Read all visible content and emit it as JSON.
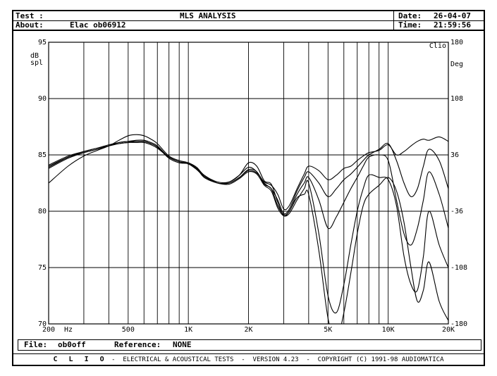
{
  "header": {
    "test_label": "Test :",
    "title": "MLS ANALYSIS",
    "date_label": "Date:",
    "date_value": "26-04-07",
    "about_label": "About:",
    "about_value": "Elac ob06912",
    "time_label": "Time:",
    "time_value": "21:59:56"
  },
  "footer": {
    "file_label": "File:",
    "file_value": "ob0off",
    "reference_label": "Reference:",
    "reference_value": "NONE"
  },
  "credits": {
    "brand": "C L I O",
    "text": "-  ELECTRICAL & ACOUSTICAL TESTS  -  VERSION 4.23  -  COPYRIGHT (C) 1991-98 AUDIOMATICA"
  },
  "chart_data": {
    "type": "line",
    "corner_label": "Clio",
    "ylabel_left_line1": "dB",
    "ylabel_left_line2": "spl",
    "ylabel_right": "Deg",
    "x_scale": "log",
    "xlim": [
      200,
      20000
    ],
    "ylim": [
      70,
      95
    ],
    "y2lim": [
      -180,
      180
    ],
    "grid": true,
    "x_unit": "Hz",
    "x_tick_labels": [
      {
        "value": 200,
        "label": "200"
      },
      {
        "value": 500,
        "label": "500"
      },
      {
        "value": 1000,
        "label": "1K"
      },
      {
        "value": 2000,
        "label": "2K"
      },
      {
        "value": 5000,
        "label": "5K"
      },
      {
        "value": 10000,
        "label": "10K"
      },
      {
        "value": 20000,
        "label": "20K"
      }
    ],
    "x_minor_grid": [
      300,
      400,
      600,
      700,
      800,
      900,
      3000,
      4000,
      6000,
      7000,
      8000,
      9000
    ],
    "y_ticks": [
      {
        "value": 95,
        "label": "95"
      },
      {
        "value": 90,
        "label": "90"
      },
      {
        "value": 85,
        "label": "85"
      },
      {
        "value": 80,
        "label": "80"
      },
      {
        "value": 75,
        "label": "75"
      },
      {
        "value": 70,
        "label": "70"
      }
    ],
    "y2_ticks": [
      {
        "value": 180,
        "label": "180"
      },
      {
        "value": 108,
        "label": "108"
      },
      {
        "value": 36,
        "label": "36"
      },
      {
        "value": -36,
        "label": "-36"
      },
      {
        "value": -108,
        "label": "-108"
      },
      {
        "value": -180,
        "label": "-180"
      }
    ],
    "x": [
      200,
      250,
      300,
      350,
      400,
      450,
      500,
      550,
      600,
      650,
      700,
      800,
      900,
      1000,
      1100,
      1200,
      1400,
      1600,
      1800,
      2000,
      2200,
      2400,
      2600,
      2800,
      3000,
      3200,
      3500,
      3800,
      4000,
      4500,
      5000,
      5500,
      6000,
      6500,
      7000,
      7500,
      8000,
      9000,
      10000,
      11000,
      12000,
      13000,
      14000,
      15000,
      16000,
      18000,
      20000
    ],
    "series": [
      {
        "values": [
          83.8,
          84.7,
          85.2,
          85.5,
          85.8,
          86.1,
          86.2,
          86.3,
          86.3,
          86.1,
          85.8,
          84.8,
          84.4,
          84.3,
          83.8,
          83.2,
          82.5,
          82.5,
          83.0,
          83.6,
          83.4,
          82.6,
          82.3,
          81.5,
          80.2,
          80.5,
          82.0,
          83.3,
          84.0,
          83.6,
          82.8,
          83.2,
          83.8,
          84.0,
          84.5,
          84.9,
          85.2,
          85.4,
          85.9,
          85.0,
          85.3,
          85.8,
          86.2,
          86.4,
          86.3,
          86.6,
          86.2
        ]
      },
      {
        "values": [
          83.9,
          84.8,
          85.3,
          85.6,
          85.9,
          86.1,
          86.2,
          86.2,
          86.2,
          86.0,
          85.7,
          84.7,
          84.3,
          84.2,
          83.7,
          83.1,
          82.5,
          82.6,
          83.2,
          83.9,
          83.5,
          82.5,
          82.0,
          81.0,
          79.8,
          80.2,
          81.8,
          83.0,
          83.5,
          82.5,
          81.3,
          82.0,
          82.8,
          83.3,
          83.9,
          84.5,
          85.0,
          85.5,
          86.0,
          84.5,
          82.5,
          81.3,
          82.0,
          84.0,
          85.5,
          84.5,
          82.0
        ]
      },
      {
        "values": [
          84.0,
          84.8,
          85.2,
          85.5,
          85.8,
          86.0,
          86.1,
          86.2,
          86.2,
          86.0,
          85.7,
          84.8,
          84.4,
          84.2,
          83.8,
          83.1,
          82.5,
          82.5,
          83.0,
          83.7,
          83.5,
          82.4,
          82.0,
          80.5,
          79.7,
          80.0,
          81.5,
          82.5,
          83.0,
          81.0,
          78.5,
          79.5,
          80.8,
          82.0,
          83.0,
          84.0,
          84.8,
          85.0,
          84.5,
          81.0,
          78.0,
          77.0,
          78.5,
          81.0,
          83.5,
          81.5,
          78.5
        ]
      },
      {
        "values": [
          84.1,
          84.9,
          85.3,
          85.6,
          85.8,
          86.0,
          86.1,
          86.1,
          86.1,
          85.9,
          85.6,
          84.8,
          84.4,
          84.2,
          83.8,
          83.0,
          82.5,
          82.4,
          82.9,
          83.5,
          83.3,
          82.3,
          81.8,
          80.3,
          79.6,
          79.8,
          81.0,
          82.0,
          82.5,
          78.0,
          72.5,
          71.0,
          73.5,
          77.0,
          80.0,
          82.0,
          83.2,
          83.0,
          82.8,
          80.5,
          76.0,
          73.5,
          73.0,
          76.0,
          80.0,
          77.0,
          75.0
        ]
      },
      {
        "values": [
          82.5,
          84.0,
          84.9,
          85.4,
          85.8,
          86.3,
          86.7,
          86.8,
          86.7,
          86.4,
          86.0,
          84.9,
          84.5,
          84.3,
          83.9,
          83.2,
          82.6,
          82.6,
          83.2,
          84.3,
          84.0,
          82.7,
          82.4,
          80.8,
          79.6,
          80.0,
          81.2,
          81.5,
          81.5,
          76.5,
          70.5,
          68.5,
          71.0,
          74.5,
          78.0,
          80.5,
          81.5,
          82.3,
          83.0,
          81.8,
          79.0,
          75.0,
          72.0,
          73.0,
          75.5,
          72.0,
          70.3
        ]
      }
    ]
  }
}
